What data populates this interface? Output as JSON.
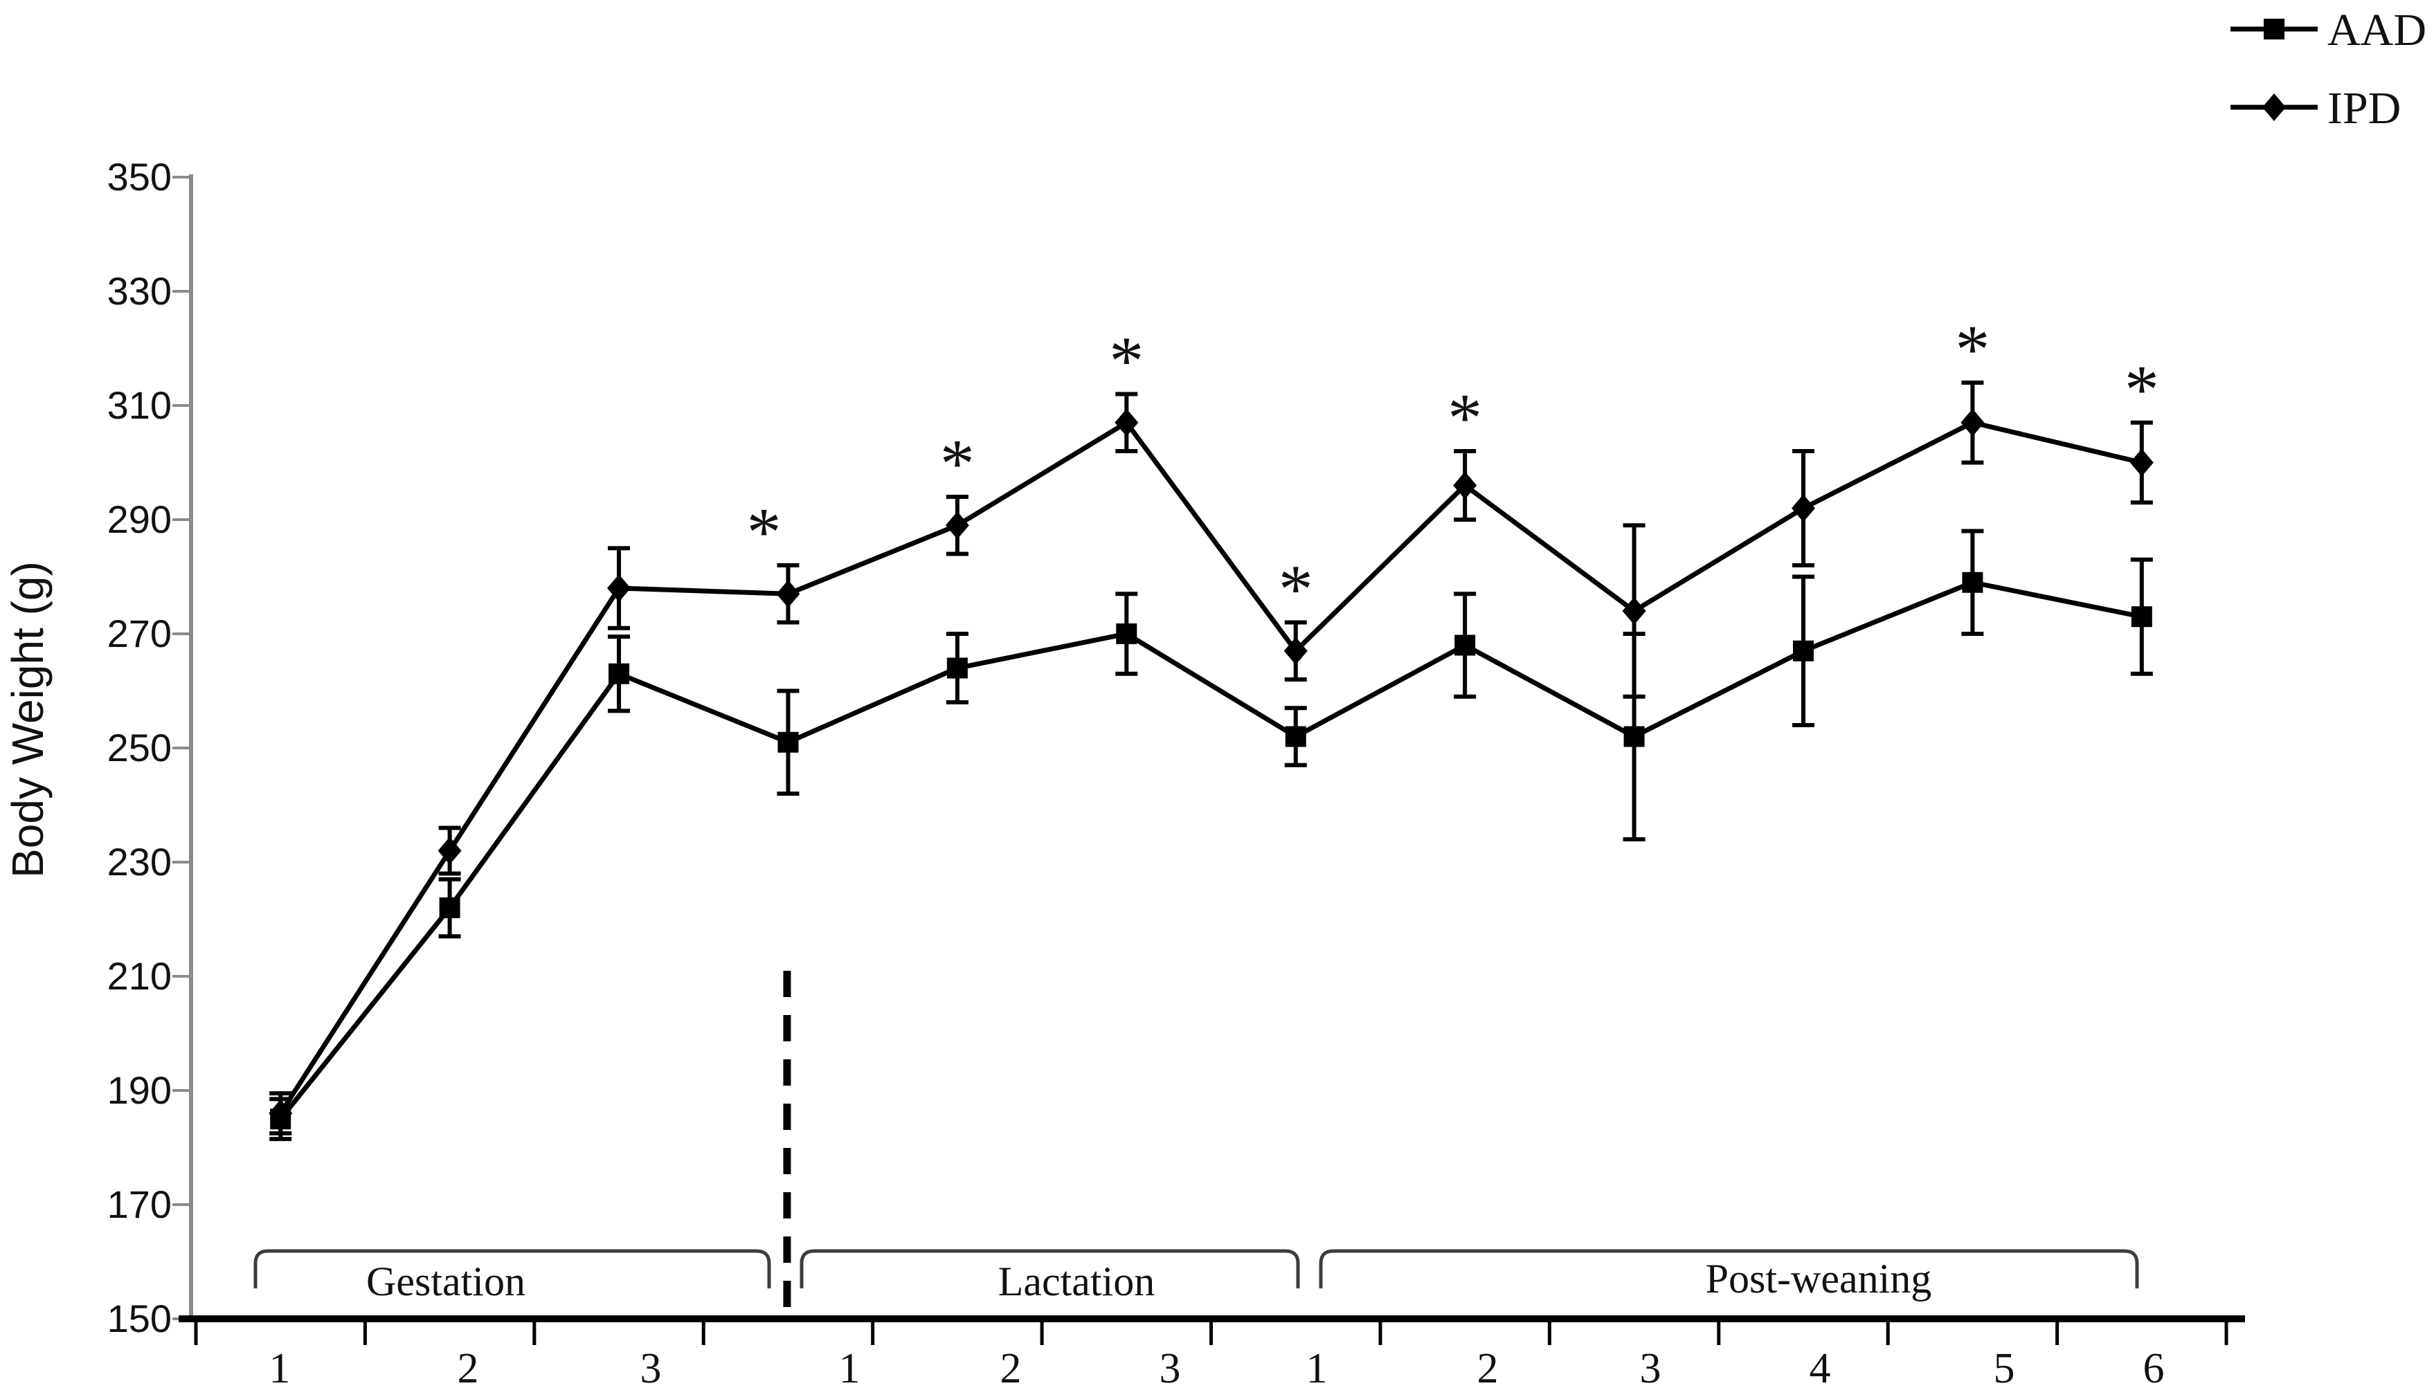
{
  "chart_data": {
    "type": "line",
    "title": "",
    "ylabel": "Body Weight (g)",
    "ylim": [
      150,
      350
    ],
    "ytick_step": 20,
    "y_ticks": [
      "350",
      "330",
      "310",
      "290",
      "270",
      "250",
      "230",
      "210",
      "190",
      "170",
      "150"
    ],
    "x_labels": [
      "1",
      "2",
      "3",
      "1",
      "2",
      "3",
      "1",
      "2",
      "3",
      "4",
      "5",
      "6"
    ],
    "phases": [
      {
        "label": "Gestation",
        "from_col": 0,
        "to_col": 2
      },
      {
        "label": "Lactation",
        "from_col": 3,
        "to_col": 5
      },
      {
        "label": "Post-weaning",
        "from_col": 6,
        "to_col": 11
      }
    ],
    "divider": {
      "style": "dashed",
      "at_column_index": 3,
      "meaning_hint": "between Gestation and Lactation"
    },
    "legend_position": "top-right",
    "grid": false,
    "series": [
      {
        "name": "AAD",
        "marker": "square",
        "color": "#000000",
        "values": [
          185,
          222,
          263,
          251,
          264,
          270,
          252,
          268,
          252,
          267,
          279,
          273
        ],
        "errors": [
          3.5,
          5,
          6.5,
          9,
          6,
          7,
          5,
          9,
          18,
          13,
          9,
          10
        ],
        "significant": [
          false,
          false,
          false,
          false,
          false,
          false,
          false,
          false,
          false,
          false,
          false,
          false
        ]
      },
      {
        "name": "IPD",
        "marker": "diamond",
        "color": "#000000",
        "values": [
          186,
          232,
          278,
          277,
          289,
          307,
          267,
          296,
          274,
          292,
          307,
          300
        ],
        "errors": [
          3.5,
          4,
          7,
          5,
          5,
          5,
          5,
          6,
          15,
          10,
          7,
          7
        ],
        "significant": [
          false,
          false,
          false,
          true,
          true,
          true,
          true,
          true,
          false,
          false,
          true,
          true
        ],
        "asterisk_dx": [
          0,
          0,
          0,
          -35,
          0,
          0,
          0,
          0,
          0,
          0,
          0,
          0
        ],
        "significance_symbol": "*"
      }
    ]
  }
}
